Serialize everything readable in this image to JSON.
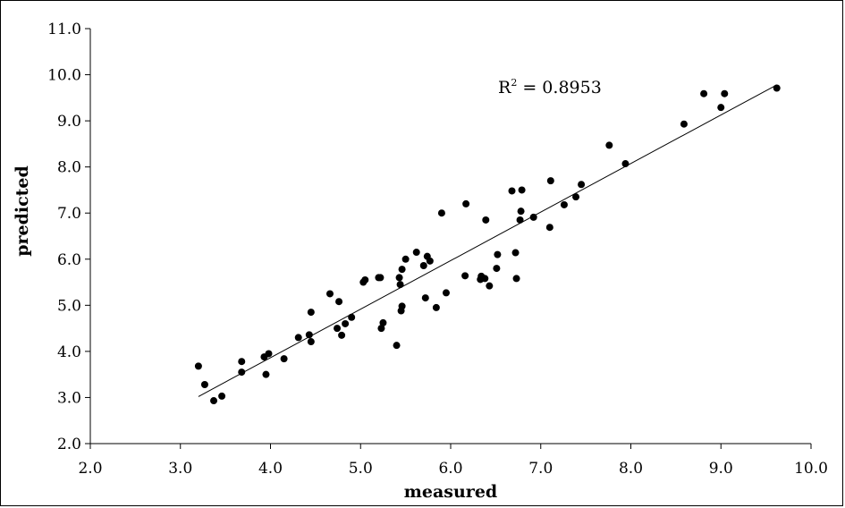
{
  "chart_data": {
    "type": "scatter",
    "xlabel": "measured",
    "ylabel": "predicted",
    "xlim": [
      2.0,
      10.0
    ],
    "ylim": [
      2.0,
      11.0
    ],
    "x_ticks": [
      "2.0",
      "3.0",
      "4.0",
      "5.0",
      "6.0",
      "7.0",
      "8.0",
      "9.0",
      "10.0"
    ],
    "y_ticks": [
      "2.0",
      "3.0",
      "4.0",
      "5.0",
      "6.0",
      "7.0",
      "8.0",
      "9.0",
      "10.0",
      "11.0"
    ],
    "grid": false,
    "annotation": {
      "label": "R",
      "superscript": "2",
      "value": " = 0.8953"
    },
    "trendline": {
      "x": [
        3.2,
        9.62
      ],
      "y": [
        3.02,
        9.78
      ]
    },
    "points": [
      {
        "x": 3.2,
        "y": 3.68
      },
      {
        "x": 3.27,
        "y": 3.28
      },
      {
        "x": 3.37,
        "y": 2.93
      },
      {
        "x": 3.46,
        "y": 3.03
      },
      {
        "x": 3.68,
        "y": 3.78
      },
      {
        "x": 3.68,
        "y": 3.55
      },
      {
        "x": 3.93,
        "y": 3.88
      },
      {
        "x": 3.95,
        "y": 3.5
      },
      {
        "x": 3.98,
        "y": 3.95
      },
      {
        "x": 4.15,
        "y": 3.84
      },
      {
        "x": 4.31,
        "y": 4.3
      },
      {
        "x": 4.43,
        "y": 4.36
      },
      {
        "x": 4.45,
        "y": 4.21
      },
      {
        "x": 4.45,
        "y": 4.85
      },
      {
        "x": 4.66,
        "y": 5.25
      },
      {
        "x": 4.74,
        "y": 4.5
      },
      {
        "x": 4.76,
        "y": 5.08
      },
      {
        "x": 4.79,
        "y": 4.35
      },
      {
        "x": 4.83,
        "y": 4.6
      },
      {
        "x": 4.9,
        "y": 4.74
      },
      {
        "x": 5.03,
        "y": 5.5
      },
      {
        "x": 5.05,
        "y": 5.55
      },
      {
        "x": 5.2,
        "y": 5.6
      },
      {
        "x": 5.22,
        "y": 5.6
      },
      {
        "x": 5.23,
        "y": 4.5
      },
      {
        "x": 5.25,
        "y": 4.62
      },
      {
        "x": 5.4,
        "y": 4.13
      },
      {
        "x": 5.43,
        "y": 5.6
      },
      {
        "x": 5.44,
        "y": 5.45
      },
      {
        "x": 5.45,
        "y": 4.88
      },
      {
        "x": 5.46,
        "y": 4.98
      },
      {
        "x": 5.46,
        "y": 5.78
      },
      {
        "x": 5.5,
        "y": 6.0
      },
      {
        "x": 5.62,
        "y": 6.15
      },
      {
        "x": 5.7,
        "y": 5.86
      },
      {
        "x": 5.72,
        "y": 5.16
      },
      {
        "x": 5.74,
        "y": 6.06
      },
      {
        "x": 5.77,
        "y": 5.96
      },
      {
        "x": 5.84,
        "y": 4.95
      },
      {
        "x": 5.9,
        "y": 7.0
      },
      {
        "x": 5.95,
        "y": 5.27
      },
      {
        "x": 6.16,
        "y": 5.64
      },
      {
        "x": 6.17,
        "y": 7.2
      },
      {
        "x": 6.33,
        "y": 5.56
      },
      {
        "x": 6.34,
        "y": 5.63
      },
      {
        "x": 6.38,
        "y": 5.58
      },
      {
        "x": 6.39,
        "y": 6.85
      },
      {
        "x": 6.43,
        "y": 5.42
      },
      {
        "x": 6.51,
        "y": 5.8
      },
      {
        "x": 6.52,
        "y": 6.1
      },
      {
        "x": 6.68,
        "y": 7.48
      },
      {
        "x": 6.72,
        "y": 6.14
      },
      {
        "x": 6.73,
        "y": 5.58
      },
      {
        "x": 6.77,
        "y": 6.85
      },
      {
        "x": 6.78,
        "y": 7.04
      },
      {
        "x": 6.79,
        "y": 7.5
      },
      {
        "x": 6.92,
        "y": 6.91
      },
      {
        "x": 7.1,
        "y": 6.69
      },
      {
        "x": 7.11,
        "y": 7.7
      },
      {
        "x": 7.26,
        "y": 7.18
      },
      {
        "x": 7.39,
        "y": 7.35
      },
      {
        "x": 7.45,
        "y": 7.62
      },
      {
        "x": 7.76,
        "y": 8.47
      },
      {
        "x": 7.94,
        "y": 8.07
      },
      {
        "x": 8.59,
        "y": 8.93
      },
      {
        "x": 8.81,
        "y": 9.59
      },
      {
        "x": 9.0,
        "y": 9.29
      },
      {
        "x": 9.04,
        "y": 9.59
      },
      {
        "x": 9.62,
        "y": 9.71
      }
    ]
  }
}
